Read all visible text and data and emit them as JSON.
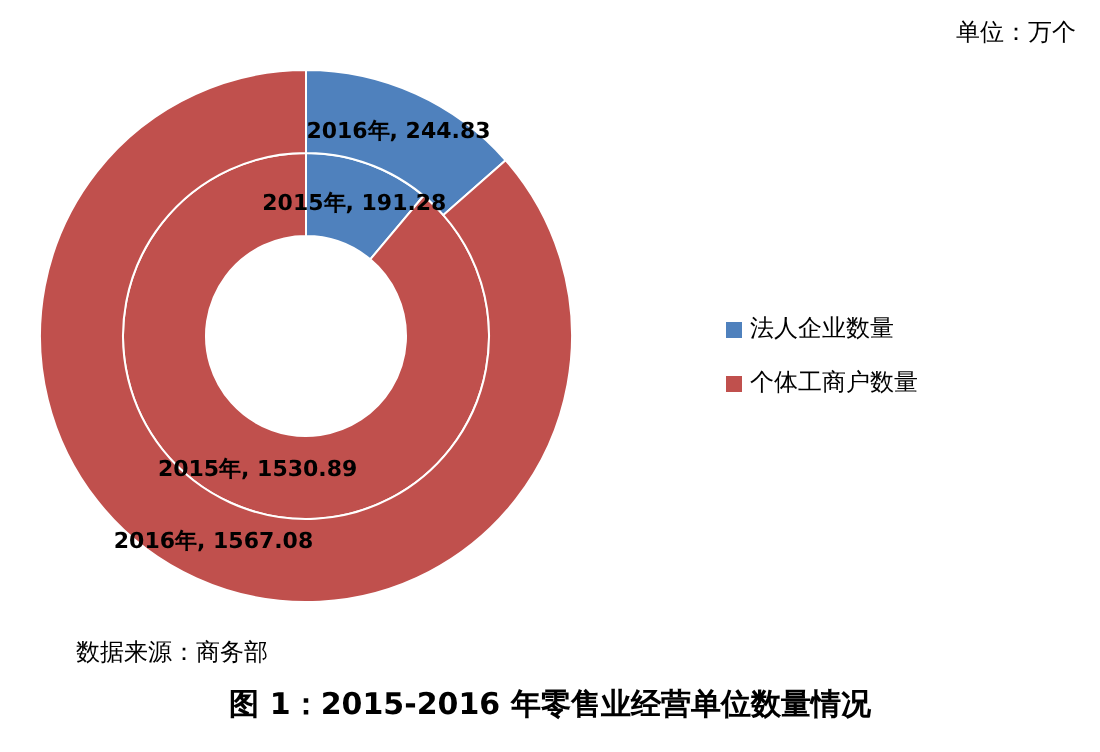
{
  "chart_data": {
    "type": "donut",
    "title": "图 1：2015-2016 年零售业经营单位数量情况",
    "annotations": [
      "单位：万个",
      "数据来源：商务部"
    ],
    "categories": [
      "法人企业数量",
      "个体工商户数量"
    ],
    "colors": [
      "#4f81bd",
      "#c0504d"
    ],
    "series": [
      {
        "values": [
          191.28,
          1530.89
        ],
        "value_labels": [
          "2015年, 191.28",
          "2015年, 1530.89"
        ]
      },
      {
        "values": [
          244.83,
          1567.08
        ],
        "value_labels": [
          "2016年, 244.83",
          "2016年, 1567.08"
        ]
      }
    ],
    "legend": "right"
  }
}
